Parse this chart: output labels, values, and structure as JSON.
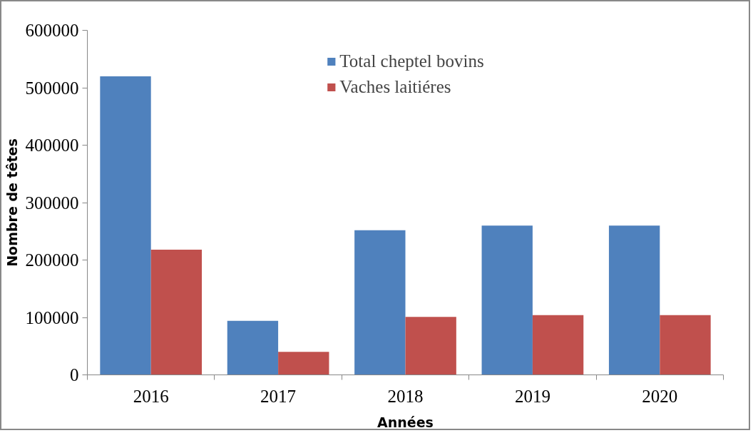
{
  "chart_data": {
    "type": "bar",
    "xlabel": "Années",
    "ylabel": "Nombre de têtes",
    "categories": [
      "2016",
      "2017",
      "2018",
      "2019",
      "2020"
    ],
    "series": [
      {
        "name": "Total cheptel bovins",
        "color": "#4f81bd",
        "values": [
          520000,
          94000,
          252000,
          260000,
          260000
        ]
      },
      {
        "name": "Vaches laitiéres",
        "color": "#c0504d",
        "values": [
          218000,
          40000,
          101000,
          104000,
          104000
        ]
      }
    ],
    "ylim": [
      0,
      600000
    ],
    "yticks": [
      0,
      100000,
      200000,
      300000,
      400000,
      500000,
      600000
    ],
    "grid": false,
    "legend": "top"
  }
}
